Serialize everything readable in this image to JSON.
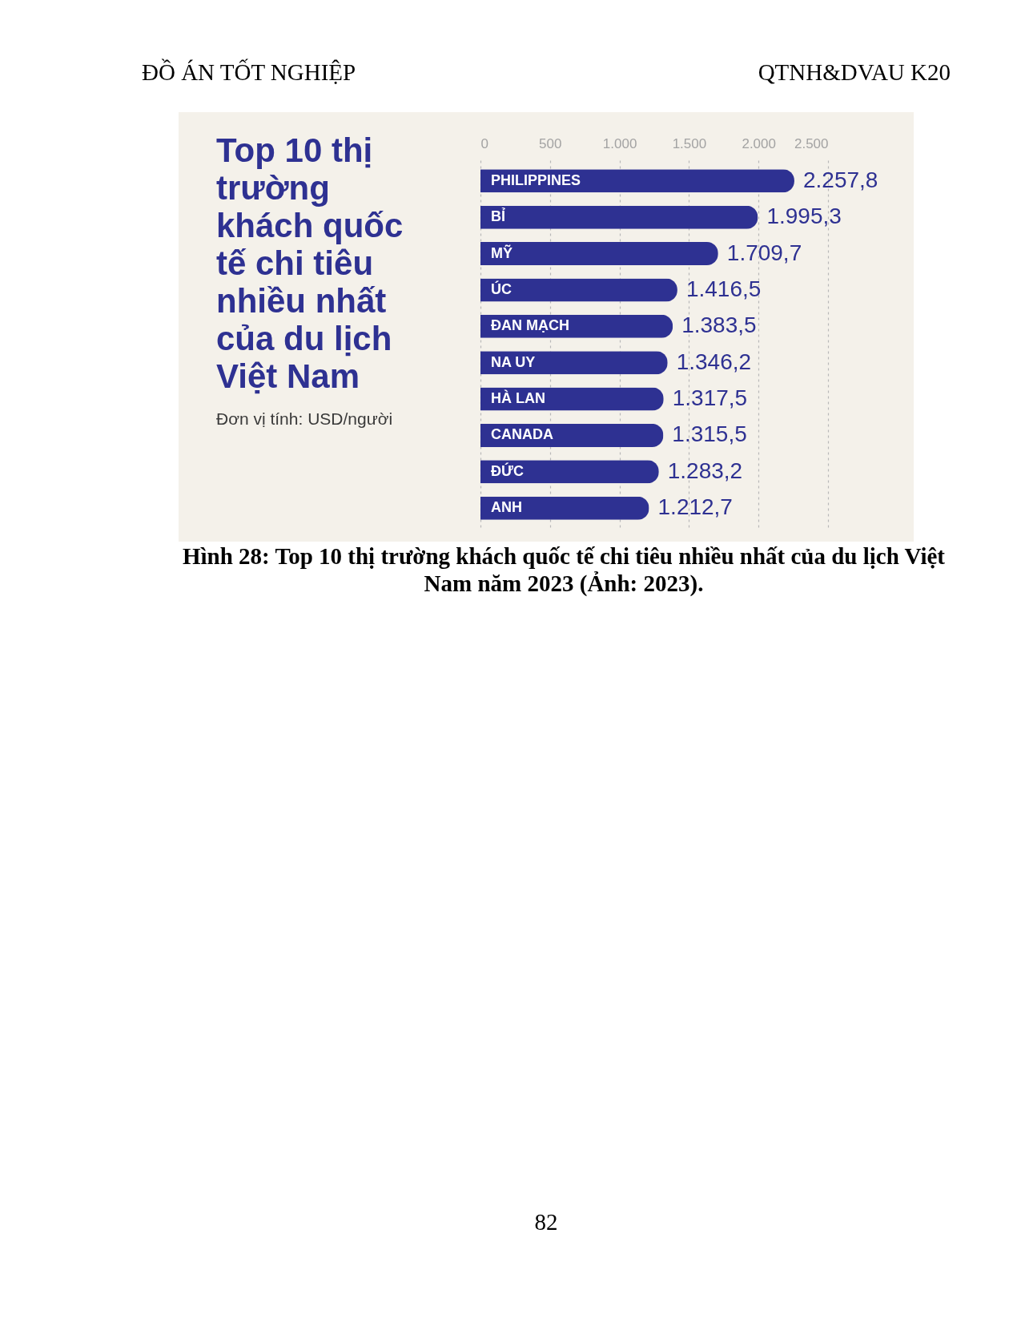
{
  "chart_data": {
    "type": "bar",
    "orientation": "horizontal",
    "title": "Top 10 thị trường khách quốc tế chi tiêu nhiều nhất của du lịch Việt Nam",
    "subtitle": "Đơn vị tính: USD/người",
    "categories": [
      "PHILIPPINES",
      "BỈ",
      "MỸ",
      "ÚC",
      "ĐAN MẠCH",
      "NA UY",
      "HÀ LAN",
      "CANADA",
      "ĐỨC",
      "ANH"
    ],
    "values": [
      2257.8,
      1995.3,
      1709.7,
      1416.5,
      1383.5,
      1346.2,
      1317.5,
      1315.5,
      1283.2,
      1212.7
    ],
    "value_labels": [
      "2.257,8",
      "1.995,3",
      "1.709,7",
      "1.416,5",
      "1.383,5",
      "1.346,2",
      "1.317,5",
      "1.315,5",
      "1.283,2",
      "1.212,7"
    ],
    "color": "#2e3192",
    "xlim": [
      0,
      2500
    ],
    "xticks": [
      0,
      500,
      {
        "value": 1000,
        "label": "1.000"
      },
      {
        "value": 1500,
        "label": "1.500"
      },
      {
        "value": 2000,
        "label": "2.000"
      },
      {
        "value": 2500,
        "label": "2.500"
      }
    ],
    "grid": "x",
    "annotations": [
      "ĐỒ ÁN TỐT NGHIỆP",
      "QTNH&DVAU K20",
      "Hình 28: Top 10 thị trường khách quốc tế chi tiêu nhiều nhất của du lịch Việt Nam năm 2023 (Ảnh: 2023).",
      "82"
    ]
  }
}
